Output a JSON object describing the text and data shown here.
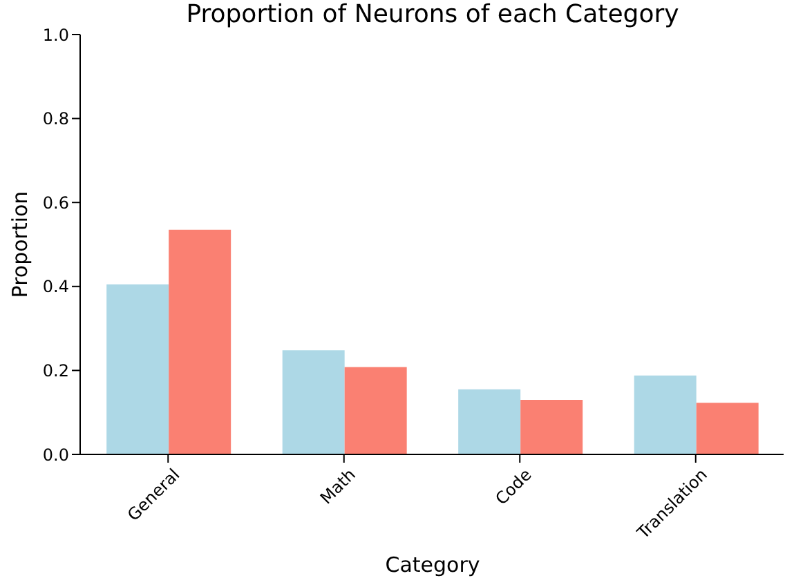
{
  "chart_data": {
    "type": "bar",
    "title": "Proportion of Neurons of each Category",
    "xlabel": "Category",
    "ylabel": "Proportion",
    "categories": [
      "General",
      "Math",
      "Code",
      "Translation"
    ],
    "series": [
      {
        "color": "#add8e6",
        "values": [
          0.405,
          0.248,
          0.155,
          0.188
        ]
      },
      {
        "color": "#fa8072",
        "values": [
          0.535,
          0.208,
          0.13,
          0.123
        ]
      }
    ],
    "ylim": [
      0,
      1
    ],
    "yticks": [
      {
        "value": 0,
        "label": "0.0"
      },
      {
        "value": 0.2,
        "label": "0.2"
      },
      {
        "value": 0.4,
        "label": "0.4"
      },
      {
        "value": 0.6,
        "label": "0.6"
      },
      {
        "value": 0.8,
        "label": "0.8"
      },
      {
        "value": 1,
        "label": "1.0"
      }
    ]
  }
}
